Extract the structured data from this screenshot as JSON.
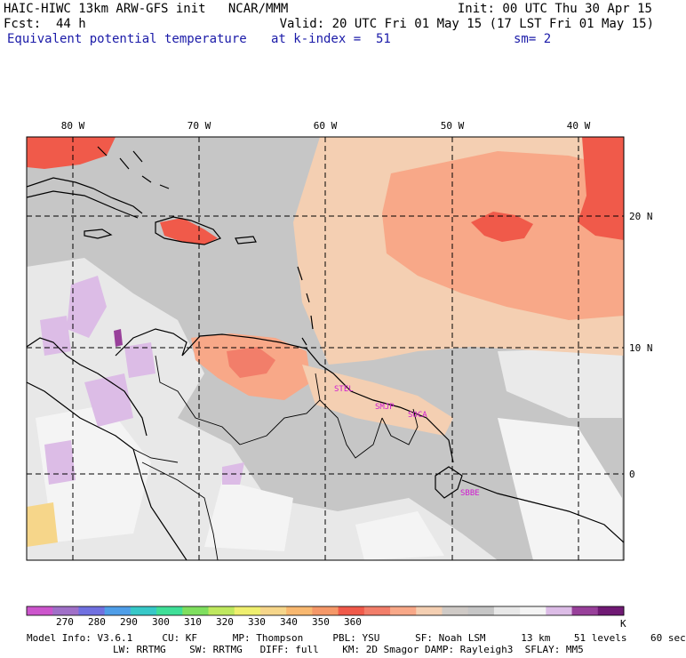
{
  "header": {
    "model": "HAIC-HIWC 13km ARW-GFS init   NCAR/MMM",
    "init": "Init: 00 UTC Thu 30 Apr 15",
    "fcst": "Fcst:  44 h",
    "valid": "Valid: 20 UTC Fri 01 May 15 (17 LST Fri 01 May 15)",
    "field": "Equivalent potential temperature",
    "level": "at k-index =  51",
    "smooth": "sm= 2"
  },
  "map": {
    "lon_labels": [
      "80 W",
      "70 W",
      "60 W",
      "50 W",
      "40 W"
    ],
    "lat_labels": [
      "20 N",
      "10 N",
      "0"
    ],
    "stations": [
      "STEL",
      "SMJP",
      "SOCA",
      "SBBE"
    ]
  },
  "colorbar": {
    "unit": "K",
    "labels": [
      "270",
      "280",
      "290",
      "300",
      "310",
      "320",
      "330",
      "340",
      "350",
      "360"
    ],
    "colors": [
      "#cc55cc",
      "#a070c8",
      "#7070e0",
      "#4f9ee8",
      "#37c8c8",
      "#3fdf98",
      "#7fdf5f",
      "#bfe85f",
      "#efef6f",
      "#f6d68a",
      "#f8b870",
      "#f59868",
      "#f05a4a",
      "#f27e6a",
      "#f8a888",
      "#f4cfb2",
      "#cfcac6",
      "#c6c6c6",
      "#e8e8e8",
      "#f4f4f4",
      "#dcbce6",
      "#98409a",
      "#701a74"
    ]
  },
  "footer": {
    "line1": "Model Info: V3.6.1     CU: KF      MP: Thompson     PBL: YSU      SF: Noah LSM      13 km    51 levels    60 sec",
    "line2": "LW: RRTMG    SW: RRTMG   DIFF: full    KM: 2D Smagor DAMP: Rayleigh3  SFLAY: MM5"
  }
}
